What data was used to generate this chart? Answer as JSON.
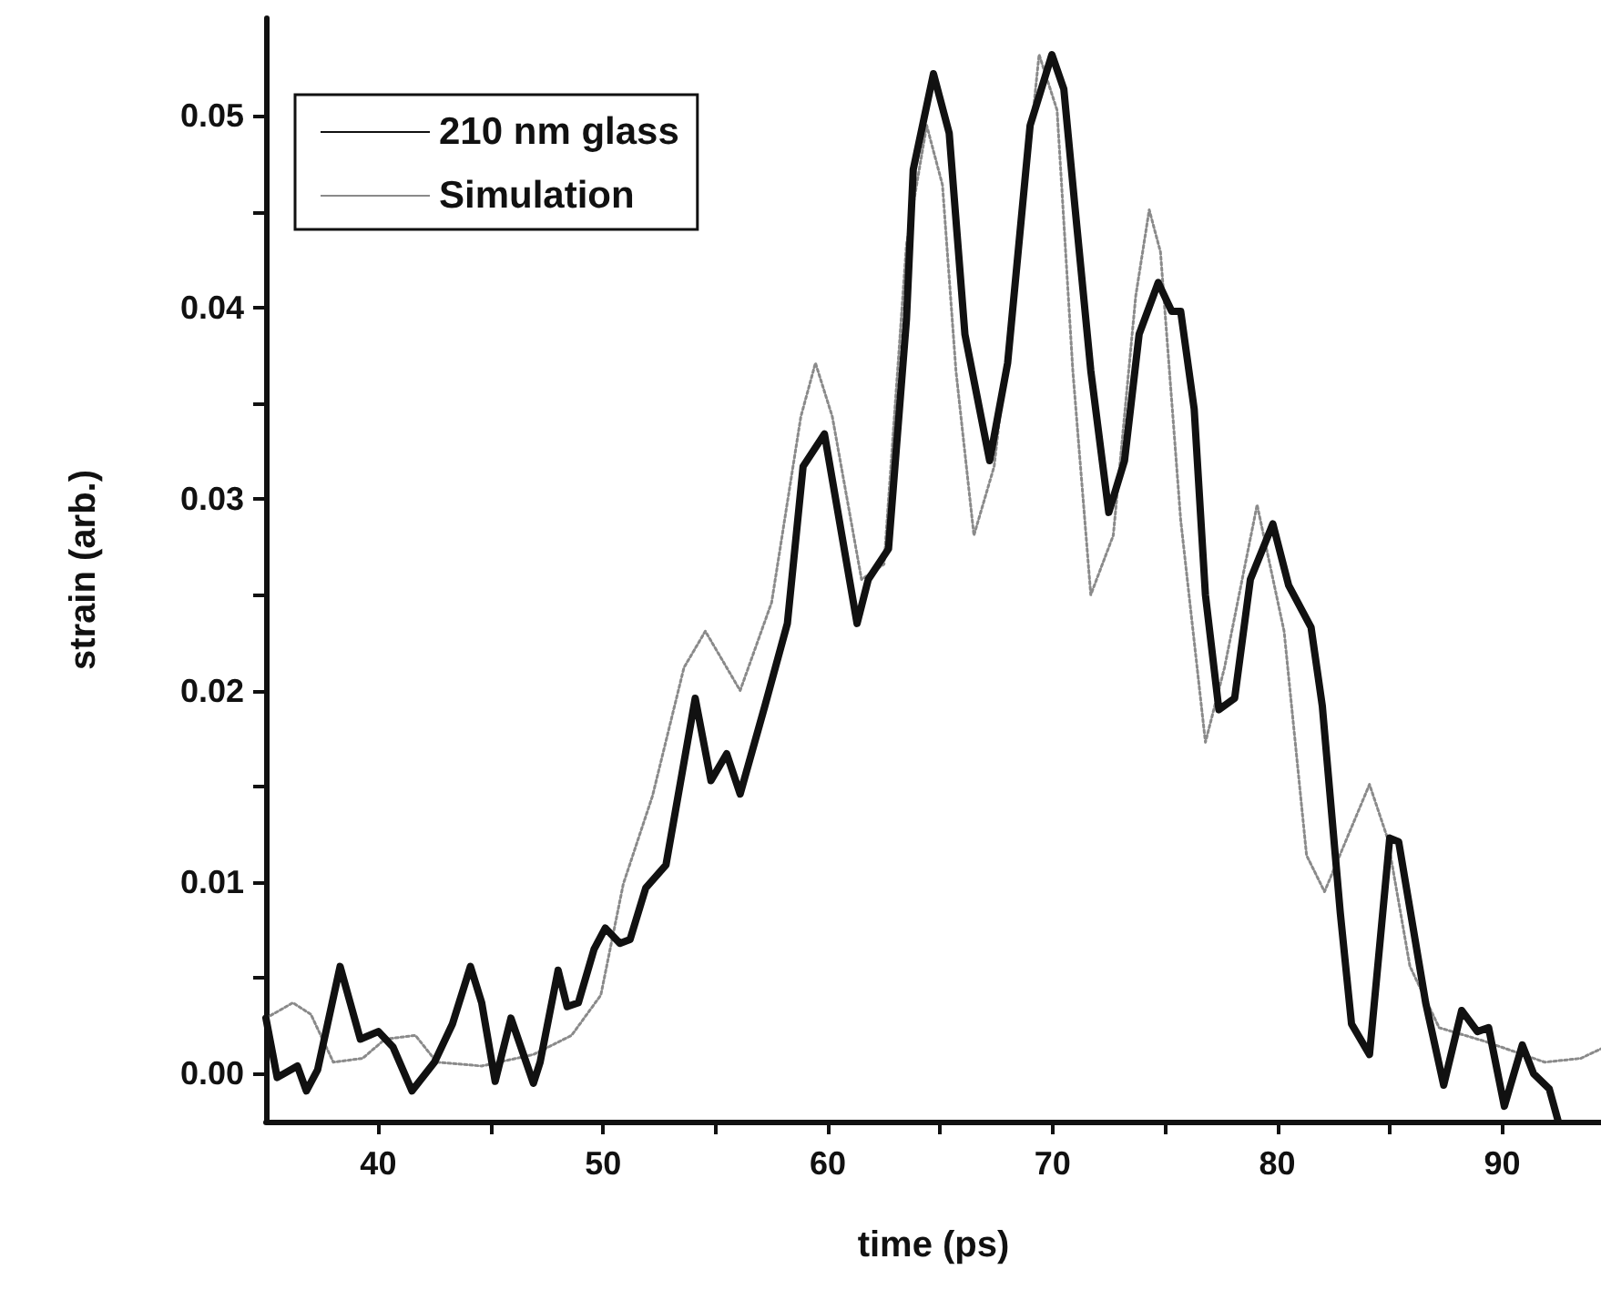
{
  "chart_data": {
    "type": "line",
    "xlabel": "time (ps)",
    "ylabel": "strain (arb.)",
    "xlim": [
      35,
      94.4
    ],
    "ylim": [
      -0.0025,
      0.0551
    ],
    "xticks": [
      40,
      {
        "value": 45,
        "label": null
      },
      50,
      {
        "value": 55,
        "label": null
      },
      60,
      {
        "value": 65,
        "label": null
      },
      70,
      {
        "value": 75,
        "label": null
      },
      80,
      {
        "value": 85,
        "label": null
      },
      90
    ],
    "yticks": [
      {
        "value": 0,
        "label": "0.00"
      },
      {
        "value": 0.005,
        "label": null
      },
      {
        "value": 0.01,
        "label": "0.01"
      },
      {
        "value": 0.015,
        "label": null
      },
      {
        "value": 0.02,
        "label": "0.02"
      },
      {
        "value": 0.025,
        "label": null
      },
      {
        "value": 0.03,
        "label": "0.03"
      },
      {
        "value": 0.035,
        "label": null
      },
      {
        "value": 0.04,
        "label": "0.04"
      },
      {
        "value": 0.045,
        "label": null
      },
      {
        "value": 0.05,
        "label": "0.05"
      }
    ],
    "grid": false,
    "legend": "top left",
    "marker": "none",
    "series": [
      {
        "name": "210 nm glass",
        "color": "#111111",
        "line_style": "solid",
        "x": [
          35.0,
          35.5,
          36.4,
          36.8,
          37.3,
          38.3,
          39.2,
          40.0,
          40.65,
          41.5,
          42.5,
          43.3,
          44.1,
          44.6,
          45.2,
          45.9,
          46.9,
          47.2,
          48.0,
          48.4,
          48.9,
          49.6,
          50.1,
          50.75,
          51.2,
          51.9,
          52.8,
          54.1,
          54.8,
          55.5,
          56.1,
          57.2,
          58.2,
          58.9,
          59.85,
          61.3,
          61.8,
          62.7,
          63.5,
          63.8,
          64.7,
          65.4,
          66.1,
          67.2,
          68.0,
          69.0,
          69.97,
          70.5,
          71.0,
          71.7,
          72.5,
          73.2,
          73.85,
          74.7,
          75.3,
          75.7,
          76.3,
          76.8,
          77.4,
          78.1,
          78.8,
          79.8,
          80.5,
          81.5,
          82.0,
          82.8,
          83.3,
          84.1,
          85.0,
          85.4,
          86.6,
          87.4,
          88.2,
          88.9,
          89.4,
          90.1,
          90.9,
          91.4,
          92.1,
          92.5
        ],
        "values": [
          0.0029,
          -0.0002,
          0.0004,
          -0.0009,
          0.0002,
          0.0056,
          0.0018,
          0.0022,
          0.0014,
          -0.0009,
          0.0006,
          0.0026,
          0.0056,
          0.0037,
          -0.0004,
          0.0029,
          -0.0005,
          0.0006,
          0.0054,
          0.0035,
          0.0037,
          0.0065,
          0.0076,
          0.0068,
          0.007,
          0.0097,
          0.0109,
          0.0196,
          0.0153,
          0.0167,
          0.0146,
          0.0192,
          0.0235,
          0.0317,
          0.0334,
          0.0235,
          0.0258,
          0.0274,
          0.0394,
          0.0472,
          0.0522,
          0.0491,
          0.0386,
          0.032,
          0.0371,
          0.0495,
          0.0532,
          0.0514,
          0.0452,
          0.0367,
          0.0293,
          0.032,
          0.0386,
          0.0413,
          0.0398,
          0.0398,
          0.0347,
          0.025,
          0.019,
          0.0196,
          0.0258,
          0.0287,
          0.0255,
          0.0233,
          0.0192,
          0.0084,
          0.0026,
          0.001,
          0.0123,
          0.0121,
          0.0037,
          -0.0006,
          0.0033,
          0.0022,
          0.0024,
          -0.0017,
          0.0015,
          0.0,
          -0.0008,
          -0.0025
        ]
      },
      {
        "name": "Simulation",
        "color": "#8a8a8a",
        "line_style": "dotted",
        "x": [
          35.0,
          36.2,
          37.0,
          38.0,
          39.3,
          40.3,
          41.65,
          42.6,
          44.6,
          46.9,
          48.6,
          49.9,
          50.9,
          52.2,
          53.6,
          54.55,
          56.1,
          57.5,
          58.8,
          59.45,
          60.2,
          61.5,
          62.5,
          63.5,
          64.4,
          65.1,
          65.7,
          66.5,
          67.4,
          68.7,
          69.4,
          70.2,
          70.9,
          71.7,
          72.7,
          73.7,
          74.3,
          74.8,
          75.7,
          76.8,
          77.65,
          79.1,
          80.3,
          81.3,
          82.1,
          83.1,
          84.1,
          84.9,
          85.9,
          87.2,
          89.2,
          91.9,
          93.5,
          94.4
        ],
        "values": [
          0.0029,
          0.0037,
          0.0031,
          0.0006,
          0.0008,
          0.0018,
          0.002,
          0.0006,
          0.0004,
          0.001,
          0.002,
          0.0041,
          0.0099,
          0.0145,
          0.0212,
          0.0231,
          0.02,
          0.0246,
          0.0343,
          0.0371,
          0.0343,
          0.0258,
          0.0266,
          0.0433,
          0.0495,
          0.0464,
          0.0367,
          0.0281,
          0.0317,
          0.0452,
          0.0532,
          0.0503,
          0.0367,
          0.025,
          0.0281,
          0.0406,
          0.0451,
          0.0429,
          0.0289,
          0.0173,
          0.0212,
          0.0297,
          0.0231,
          0.0114,
          0.0095,
          0.0123,
          0.0151,
          0.0123,
          0.0056,
          0.0024,
          0.0017,
          0.0006,
          0.0008,
          0.0013
        ]
      }
    ]
  }
}
